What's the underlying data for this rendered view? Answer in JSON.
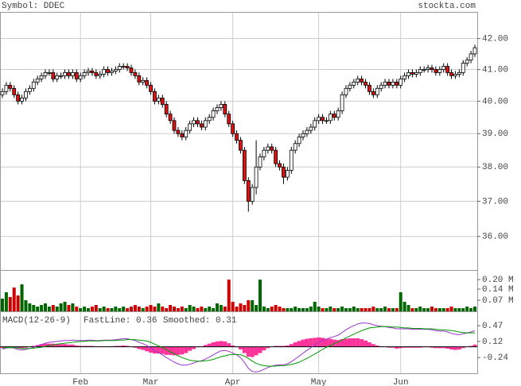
{
  "header": {
    "symbol": "Symbol: DDEC",
    "site": "stockta.com"
  },
  "chart_data": [
    {
      "type": "candlestick",
      "categories": [
        null,
        null,
        null,
        null,
        null,
        null,
        null,
        null,
        null,
        null,
        null,
        null,
        null,
        null,
        null,
        null,
        null,
        null,
        null,
        null,
        "Feb",
        null,
        null,
        null,
        null,
        null,
        null,
        null,
        null,
        null,
        null,
        null,
        null,
        null,
        null,
        null,
        null,
        null,
        "Mar",
        null,
        null,
        null,
        null,
        null,
        null,
        null,
        null,
        null,
        null,
        null,
        null,
        null,
        null,
        null,
        null,
        null,
        null,
        null,
        null,
        "Apr",
        null,
        null,
        null,
        null,
        null,
        null,
        null,
        null,
        null,
        null,
        null,
        null,
        null,
        null,
        null,
        null,
        null,
        null,
        null,
        null,
        null,
        "May",
        null,
        null,
        null,
        null,
        null,
        null,
        null,
        null,
        null,
        null,
        null,
        null,
        null,
        null,
        null,
        null,
        null,
        null,
        null,
        null,
        "Jun",
        null,
        null,
        null,
        null,
        null,
        null,
        null,
        null,
        null,
        null,
        null,
        null,
        null,
        null,
        null,
        null,
        null,
        null,
        null
      ],
      "open": [
        40.2,
        40.3,
        40.5,
        40.4,
        40.2,
        40.0,
        40.1,
        40.3,
        40.4,
        40.6,
        40.7,
        40.8,
        40.9,
        40.9,
        40.7,
        40.8,
        40.8,
        40.9,
        40.8,
        40.9,
        40.7,
        40.8,
        40.9,
        40.95,
        40.9,
        40.8,
        40.85,
        41.0,
        40.9,
        40.95,
        41.0,
        41.1,
        41.1,
        41.05,
        40.9,
        40.8,
        40.6,
        40.65,
        40.5,
        40.3,
        40.0,
        40.1,
        39.9,
        39.6,
        39.4,
        39.1,
        39.0,
        38.9,
        39.1,
        39.3,
        39.4,
        39.3,
        39.2,
        39.4,
        39.5,
        39.7,
        39.8,
        39.9,
        39.6,
        39.3,
        39.0,
        38.8,
        38.5,
        37.6,
        37.0,
        37.4,
        38.0,
        38.3,
        38.5,
        38.6,
        38.5,
        38.1,
        38.0,
        37.7,
        37.9,
        38.5,
        38.7,
        38.9,
        39.0,
        39.1,
        39.2,
        39.4,
        39.5,
        39.4,
        39.4,
        39.6,
        39.5,
        39.7,
        40.2,
        40.4,
        40.5,
        40.6,
        40.7,
        40.6,
        40.5,
        40.3,
        40.2,
        40.4,
        40.5,
        40.6,
        40.5,
        40.6,
        40.5,
        40.7,
        40.8,
        40.9,
        40.85,
        40.9,
        41.0,
        41.0,
        41.05,
        41.0,
        40.9,
        41.0,
        41.1,
        40.9,
        40.8,
        40.85,
        40.9,
        41.2,
        41.3,
        41.5
      ],
      "high": [
        40.4,
        40.6,
        40.6,
        40.5,
        40.3,
        40.2,
        40.4,
        40.5,
        40.7,
        40.8,
        40.9,
        41.0,
        41.0,
        41.0,
        40.9,
        40.9,
        41.0,
        41.0,
        41.0,
        41.0,
        40.9,
        41.0,
        41.05,
        41.05,
        41.0,
        40.95,
        41.1,
        41.1,
        41.05,
        41.1,
        41.2,
        41.2,
        41.2,
        41.15,
        41.0,
        40.9,
        40.75,
        40.75,
        40.6,
        40.4,
        40.2,
        40.2,
        40.0,
        39.7,
        39.5,
        39.2,
        39.1,
        39.2,
        39.4,
        39.5,
        39.5,
        39.4,
        39.5,
        39.6,
        39.8,
        39.9,
        40.0,
        40.0,
        39.7,
        39.4,
        39.1,
        38.9,
        38.6,
        37.7,
        37.5,
        38.8,
        38.4,
        38.6,
        38.7,
        38.7,
        38.6,
        38.2,
        38.1,
        38.0,
        38.6,
        38.8,
        39.0,
        39.1,
        39.2,
        39.3,
        39.5,
        39.6,
        39.6,
        39.5,
        39.7,
        39.7,
        39.8,
        40.3,
        40.5,
        40.6,
        40.7,
        40.8,
        40.8,
        40.7,
        40.6,
        40.4,
        40.5,
        40.6,
        40.7,
        40.7,
        40.7,
        40.7,
        40.8,
        40.9,
        41.0,
        41.0,
        41.0,
        41.1,
        41.1,
        41.15,
        41.15,
        41.1,
        41.1,
        41.2,
        41.2,
        41.0,
        40.95,
        41.0,
        41.3,
        41.4,
        41.6,
        41.8
      ],
      "low": [
        40.1,
        40.2,
        40.3,
        40.1,
        39.9,
        39.9,
        40.0,
        40.2,
        40.3,
        40.5,
        40.6,
        40.7,
        40.8,
        40.6,
        40.6,
        40.7,
        40.7,
        40.7,
        40.7,
        40.6,
        40.6,
        40.7,
        40.8,
        40.8,
        40.7,
        40.7,
        40.75,
        40.8,
        40.8,
        40.85,
        40.9,
        41.0,
        40.95,
        40.8,
        40.7,
        40.5,
        40.5,
        40.4,
        40.2,
        39.9,
        39.9,
        39.8,
        39.5,
        39.3,
        39.0,
        38.9,
        38.8,
        38.8,
        39.0,
        39.2,
        39.2,
        39.1,
        39.1,
        39.3,
        39.4,
        39.6,
        39.7,
        39.5,
        39.2,
        38.9,
        38.7,
        38.4,
        37.5,
        36.7,
        36.9,
        37.2,
        37.9,
        38.2,
        38.4,
        38.4,
        38.0,
        37.9,
        37.5,
        37.6,
        37.8,
        38.4,
        38.6,
        38.8,
        38.9,
        39.0,
        39.1,
        39.3,
        39.3,
        39.3,
        39.3,
        39.4,
        39.4,
        39.6,
        40.1,
        40.3,
        40.4,
        40.5,
        40.5,
        40.4,
        40.2,
        40.1,
        40.1,
        40.3,
        40.4,
        40.4,
        40.4,
        40.4,
        40.4,
        40.6,
        40.7,
        40.75,
        40.75,
        40.8,
        40.9,
        40.9,
        40.9,
        40.8,
        40.8,
        40.9,
        40.8,
        40.7,
        40.7,
        40.75,
        40.8,
        41.1,
        41.2,
        41.4
      ],
      "close": [
        40.3,
        40.5,
        40.4,
        40.2,
        40.0,
        40.1,
        40.3,
        40.4,
        40.6,
        40.7,
        40.8,
        40.9,
        40.9,
        40.7,
        40.8,
        40.8,
        40.9,
        40.8,
        40.9,
        40.7,
        40.8,
        40.9,
        40.95,
        40.9,
        40.8,
        40.85,
        41.0,
        40.9,
        40.95,
        41.0,
        41.1,
        41.1,
        41.05,
        40.9,
        40.8,
        40.6,
        40.65,
        40.5,
        40.3,
        40.0,
        40.1,
        39.9,
        39.6,
        39.4,
        39.1,
        39.0,
        38.9,
        39.1,
        39.3,
        39.4,
        39.3,
        39.2,
        39.4,
        39.5,
        39.7,
        39.8,
        39.9,
        39.6,
        39.3,
        39.0,
        38.8,
        38.5,
        37.6,
        37.0,
        37.4,
        38.0,
        38.3,
        38.5,
        38.6,
        38.5,
        38.1,
        38.0,
        37.7,
        37.9,
        38.5,
        38.7,
        38.9,
        39.0,
        39.1,
        39.2,
        39.4,
        39.5,
        39.4,
        39.4,
        39.6,
        39.5,
        39.7,
        40.2,
        40.4,
        40.5,
        40.6,
        40.7,
        40.6,
        40.5,
        40.3,
        40.2,
        40.4,
        40.5,
        40.6,
        40.5,
        40.6,
        40.5,
        40.7,
        40.8,
        40.9,
        40.85,
        40.9,
        41.0,
        41.0,
        41.05,
        41.0,
        40.9,
        41.0,
        41.1,
        40.9,
        40.8,
        40.85,
        40.9,
        41.2,
        41.3,
        41.5,
        41.7
      ],
      "up_color": "#ffffff",
      "down_color": "#dd1111",
      "log_scale": true,
      "grid": true,
      "ylim": [
        35.07,
        42.88
      ],
      "yticks": [
        {
          "value": 42,
          "label": "42.00"
        },
        {
          "value": 41,
          "label": "41.00"
        },
        {
          "value": 40,
          "label": "40.00"
        },
        {
          "value": 39,
          "label": "39.00"
        },
        {
          "value": 38,
          "label": "38.00"
        },
        {
          "value": 37,
          "label": "37.00"
        },
        {
          "value": 36,
          "label": "36.00"
        }
      ]
    },
    {
      "type": "volume",
      "values": [
        0.08,
        0.12,
        0.09,
        0.15,
        0.1,
        0.17,
        0.07,
        0.05,
        0.04,
        0.03,
        0.04,
        0.05,
        0.03,
        0.04,
        0.03,
        0.05,
        0.06,
        0.04,
        0.05,
        0.03,
        0.02,
        0.03,
        0.02,
        0.03,
        0.04,
        0.02,
        0.03,
        0.02,
        0.02,
        0.03,
        0.02,
        0.03,
        0.02,
        0.03,
        0.04,
        0.03,
        0.02,
        0.03,
        0.04,
        0.03,
        0.05,
        0.03,
        0.02,
        0.04,
        0.03,
        0.02,
        0.03,
        0.02,
        0.04,
        0.03,
        0.02,
        0.03,
        0.02,
        0.03,
        0.02,
        0.05,
        0.04,
        0.03,
        0.2,
        0.06,
        0.03,
        0.05,
        0.04,
        0.07,
        0.07,
        0.04,
        0.2,
        0.03,
        0.02,
        0.03,
        0.04,
        0.03,
        0.02,
        0.02,
        0.02,
        0.03,
        0.02,
        0.02,
        0.02,
        0.03,
        0.06,
        0.03,
        0.02,
        0.02,
        0.03,
        0.02,
        0.02,
        0.03,
        0.02,
        0.02,
        0.03,
        0.02,
        0.02,
        0.02,
        0.02,
        0.03,
        0.02,
        0.02,
        0.03,
        0.02,
        0.02,
        0.02,
        0.12,
        0.06,
        0.04,
        0.02,
        0.02,
        0.03,
        0.02,
        0.02,
        0.03,
        0.02,
        0.02,
        0.02,
        0.02,
        0.03,
        0.02,
        0.02,
        0.02,
        0.03,
        0.02,
        0.03
      ],
      "up_color": "#006600",
      "down_color": "#cc0000",
      "ylim": [
        0,
        0.26
      ],
      "yticks": [
        {
          "value": 0.2,
          "label": "0.20 M"
        },
        {
          "value": 0.14,
          "label": "0.14 M"
        },
        {
          "value": 0.07,
          "label": "0.07 M"
        }
      ]
    },
    {
      "type": "macd",
      "title": "MACD(12-26-9)",
      "series": [
        {
          "name": "FastLine: 0.36",
          "color": "#9933cc",
          "values": [
            -0.05,
            -0.03,
            -0.02,
            -0.03,
            -0.06,
            -0.07,
            -0.06,
            -0.04,
            -0.01,
            0.02,
            0.05,
            0.08,
            0.1,
            0.11,
            0.12,
            0.13,
            0.14,
            0.14,
            0.15,
            0.14,
            0.14,
            0.14,
            0.15,
            0.15,
            0.14,
            0.14,
            0.15,
            0.15,
            0.15,
            0.16,
            0.17,
            0.18,
            0.18,
            0.16,
            0.14,
            0.1,
            0.07,
            0.03,
            -0.03,
            -0.09,
            -0.13,
            -0.18,
            -0.24,
            -0.29,
            -0.34,
            -0.38,
            -0.41,
            -0.41,
            -0.39,
            -0.36,
            -0.33,
            -0.31,
            -0.27,
            -0.23,
            -0.18,
            -0.13,
            -0.09,
            -0.08,
            -0.1,
            -0.14,
            -0.18,
            -0.24,
            -0.35,
            -0.48,
            -0.55,
            -0.56,
            -0.54,
            -0.5,
            -0.46,
            -0.43,
            -0.41,
            -0.4,
            -0.4,
            -0.38,
            -0.33,
            -0.27,
            -0.21,
            -0.14,
            -0.08,
            -0.02,
            0.04,
            0.1,
            0.14,
            0.17,
            0.21,
            0.23,
            0.26,
            0.32,
            0.38,
            0.43,
            0.47,
            0.51,
            0.53,
            0.53,
            0.52,
            0.49,
            0.47,
            0.46,
            0.45,
            0.43,
            0.42,
            0.4,
            0.4,
            0.4,
            0.4,
            0.39,
            0.39,
            0.39,
            0.39,
            0.39,
            0.38,
            0.36,
            0.35,
            0.35,
            0.33,
            0.3,
            0.28,
            0.27,
            0.29,
            0.31,
            0.33,
            0.36
          ]
        },
        {
          "name": "Smoothed: 0.31",
          "color": "#009900",
          "values": [
            -0.02,
            -0.02,
            -0.02,
            -0.02,
            -0.03,
            -0.04,
            -0.04,
            -0.04,
            -0.03,
            -0.02,
            -0.01,
            0.01,
            0.03,
            0.04,
            0.06,
            0.07,
            0.08,
            0.09,
            0.1,
            0.11,
            0.12,
            0.12,
            0.13,
            0.13,
            0.13,
            0.13,
            0.14,
            0.14,
            0.14,
            0.14,
            0.15,
            0.15,
            0.16,
            0.16,
            0.16,
            0.15,
            0.14,
            0.13,
            0.1,
            0.06,
            0.02,
            -0.02,
            -0.06,
            -0.11,
            -0.15,
            -0.2,
            -0.24,
            -0.27,
            -0.3,
            -0.31,
            -0.32,
            -0.32,
            -0.31,
            -0.3,
            -0.28,
            -0.25,
            -0.22,
            -0.2,
            -0.18,
            -0.17,
            -0.17,
            -0.18,
            -0.21,
            -0.26,
            -0.32,
            -0.37,
            -0.4,
            -0.42,
            -0.43,
            -0.43,
            -0.43,
            -0.42,
            -0.42,
            -0.41,
            -0.39,
            -0.37,
            -0.34,
            -0.3,
            -0.26,
            -0.21,
            -0.16,
            -0.11,
            -0.06,
            -0.01,
            0.03,
            0.07,
            0.11,
            0.15,
            0.2,
            0.24,
            0.28,
            0.32,
            0.36,
            0.39,
            0.42,
            0.43,
            0.44,
            0.45,
            0.45,
            0.45,
            0.44,
            0.44,
            0.43,
            0.42,
            0.42,
            0.41,
            0.41,
            0.41,
            0.4,
            0.4,
            0.4,
            0.39,
            0.38,
            0.38,
            0.37,
            0.36,
            0.35,
            0.33,
            0.32,
            0.31,
            0.31,
            0.31
          ]
        }
      ],
      "histogram": {
        "color": "#ff3399",
        "values": [
          -0.03,
          -0.01,
          0.0,
          -0.01,
          -0.03,
          -0.03,
          -0.02,
          0.0,
          0.02,
          0.04,
          0.06,
          0.07,
          0.07,
          0.07,
          0.06,
          0.06,
          0.06,
          0.05,
          0.05,
          0.03,
          0.02,
          0.02,
          0.02,
          0.02,
          0.01,
          0.01,
          0.01,
          0.01,
          0.01,
          0.02,
          0.02,
          0.03,
          0.02,
          0.0,
          -0.02,
          -0.05,
          -0.07,
          -0.1,
          -0.13,
          -0.15,
          -0.15,
          -0.16,
          -0.18,
          -0.18,
          -0.19,
          -0.18,
          -0.17,
          -0.14,
          -0.09,
          -0.05,
          -0.01,
          0.01,
          0.04,
          0.07,
          0.1,
          0.12,
          0.13,
          0.12,
          0.08,
          0.03,
          -0.01,
          -0.06,
          -0.14,
          -0.22,
          -0.23,
          -0.19,
          -0.14,
          -0.08,
          -0.03,
          0.0,
          0.02,
          0.02,
          0.02,
          0.03,
          0.06,
          0.1,
          0.13,
          0.16,
          0.18,
          0.19,
          0.2,
          0.21,
          0.2,
          0.18,
          0.18,
          0.16,
          0.15,
          0.17,
          0.18,
          0.19,
          0.19,
          0.19,
          0.17,
          0.14,
          0.1,
          0.06,
          0.03,
          0.01,
          0.0,
          -0.02,
          -0.02,
          -0.04,
          -0.03,
          -0.02,
          -0.02,
          -0.02,
          -0.02,
          -0.02,
          -0.01,
          -0.01,
          -0.02,
          -0.03,
          -0.03,
          -0.03,
          -0.04,
          -0.06,
          -0.07,
          -0.06,
          -0.03,
          0.0,
          0.02,
          0.05
        ]
      },
      "ylim": [
        -0.59,
        0.79
      ],
      "yticks": [
        0.47,
        0.12,
        -0.24
      ]
    }
  ]
}
